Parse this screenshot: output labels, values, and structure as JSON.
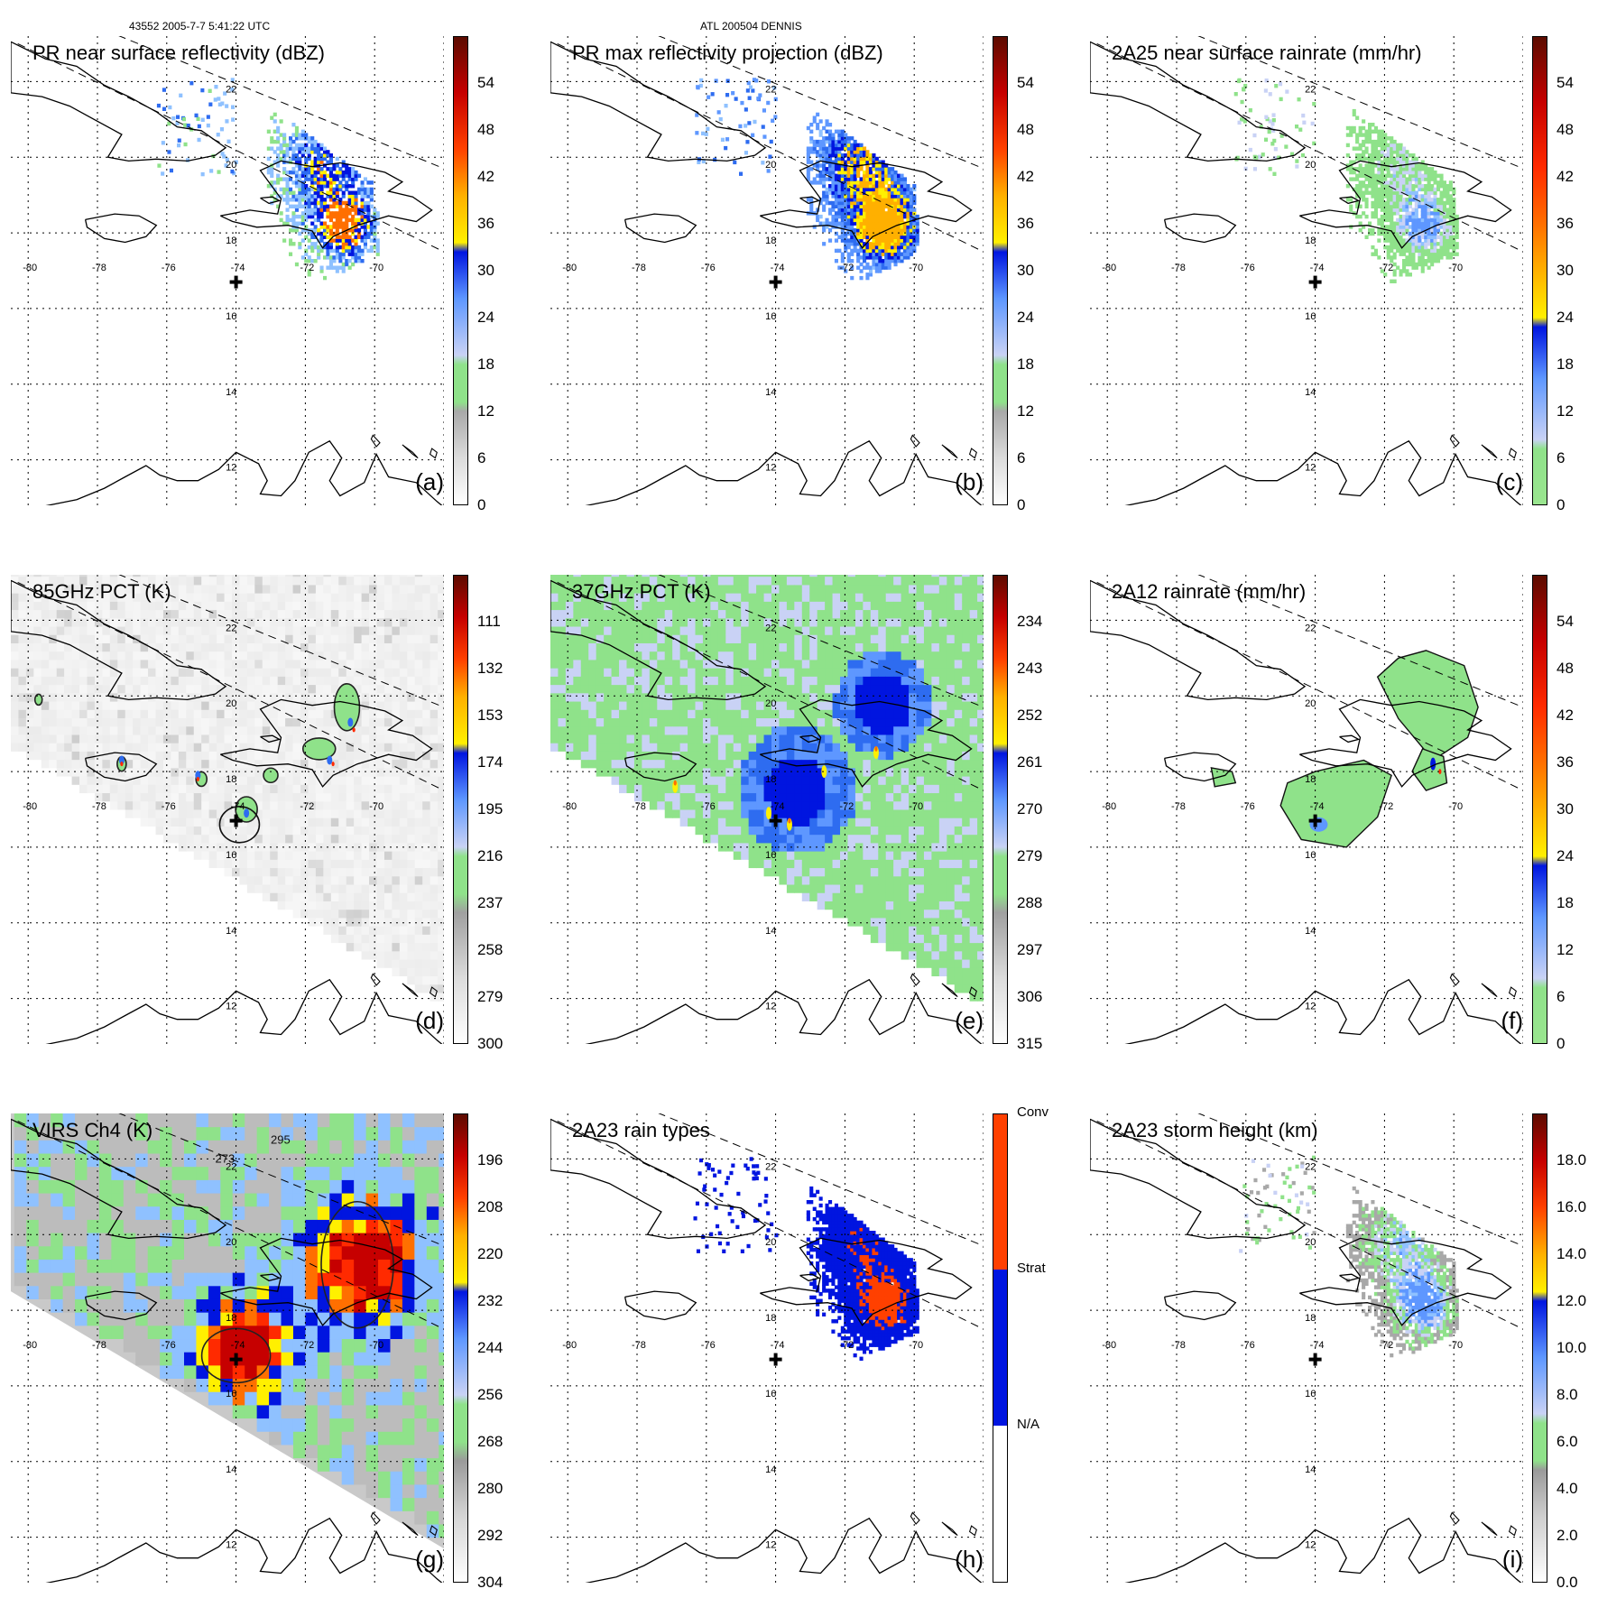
{
  "header": {
    "orbit_time": "43552 2005-7-7 5:41:22 UTC",
    "storm": "ATL 200504 DENNIS"
  },
  "map": {
    "lon_labels": [
      "-80",
      "-78",
      "-76",
      "-74",
      "-72",
      "-70"
    ],
    "lat_labels": [
      "22",
      "20",
      "18",
      "16",
      "14",
      "12"
    ],
    "storm_center": {
      "lon": -74.0,
      "lat": 16.7
    },
    "lon_range": [
      -80.5,
      -68.0
    ],
    "lat_range": [
      10.8,
      23.2
    ]
  },
  "colors": {
    "jet": [
      "#8fe28a",
      "#8fe28a",
      "#c9d2f5",
      "#6fb0ff",
      "#2e6cf0",
      "#0015e0",
      "#fff000",
      "#ffb000",
      "#ff6f00",
      "#ff2a00",
      "#c60000",
      "#6a1000"
    ],
    "gray": "#a8a8a8"
  },
  "panels": [
    {
      "id": "a",
      "title": "PR near surface reflectivity (dBZ)",
      "label": "(a)",
      "cbar_ticks": [
        "54",
        "48",
        "42",
        "36",
        "30",
        "24",
        "18",
        "12",
        "6",
        "0"
      ],
      "cbar_type": "dbz",
      "field": "pr"
    },
    {
      "id": "b",
      "title": "PR max reflectivity projection (dBZ)",
      "label": "(b)",
      "cbar_ticks": [
        "54",
        "48",
        "42",
        "36",
        "30",
        "24",
        "18",
        "12",
        "6",
        "0"
      ],
      "cbar_type": "dbz",
      "field": "prmax"
    },
    {
      "id": "c",
      "title": "2A25 near surface rainrate (mm/hr)",
      "label": "(c)",
      "cbar_ticks": [
        "54",
        "48",
        "42",
        "36",
        "30",
        "24",
        "18",
        "12",
        "6",
        "0"
      ],
      "cbar_type": "rain",
      "field": "pr25"
    },
    {
      "id": "d",
      "title": "85GHz PCT (K)",
      "label": "(d)",
      "cbar_ticks": [
        "111",
        "132",
        "153",
        "174",
        "195",
        "216",
        "237",
        "258",
        "279",
        "300"
      ],
      "cbar_type": "pct",
      "field": "pct85"
    },
    {
      "id": "e",
      "title": "37GHz PCT (K)",
      "label": "(e)",
      "cbar_ticks": [
        "234",
        "243",
        "252",
        "261",
        "270",
        "279",
        "288",
        "297",
        "306",
        "315"
      ],
      "cbar_type": "pct",
      "field": "pct37"
    },
    {
      "id": "f",
      "title": "2A12 rainrate (mm/hr)",
      "label": "(f)",
      "cbar_ticks": [
        "54",
        "48",
        "42",
        "36",
        "30",
        "24",
        "18",
        "12",
        "6",
        "0"
      ],
      "cbar_type": "rain",
      "field": "tmi12"
    },
    {
      "id": "g",
      "title": "VIRS Ch4 (K)",
      "label": "(g)",
      "cbar_ticks": [
        "196",
        "208",
        "220",
        "232",
        "244",
        "256",
        "268",
        "280",
        "292",
        "304"
      ],
      "cbar_type": "ir",
      "field": "virs"
    },
    {
      "id": "h",
      "title": "2A23 rain types",
      "label": "(h)",
      "cbar_ticks": [
        "Conv",
        "Strat",
        "N/A"
      ],
      "cbar_type": "types",
      "field": "types"
    },
    {
      "id": "i",
      "title": "2A23 storm height (km)",
      "label": "(i)",
      "cbar_ticks": [
        "18.0",
        "16.0",
        "14.0",
        "12.0",
        "10.0",
        "8.0",
        "6.0",
        "4.0",
        "2.0",
        "0.0"
      ],
      "cbar_type": "height",
      "field": "height"
    }
  ],
  "virs_contour_labels": [
    "273",
    "295"
  ]
}
